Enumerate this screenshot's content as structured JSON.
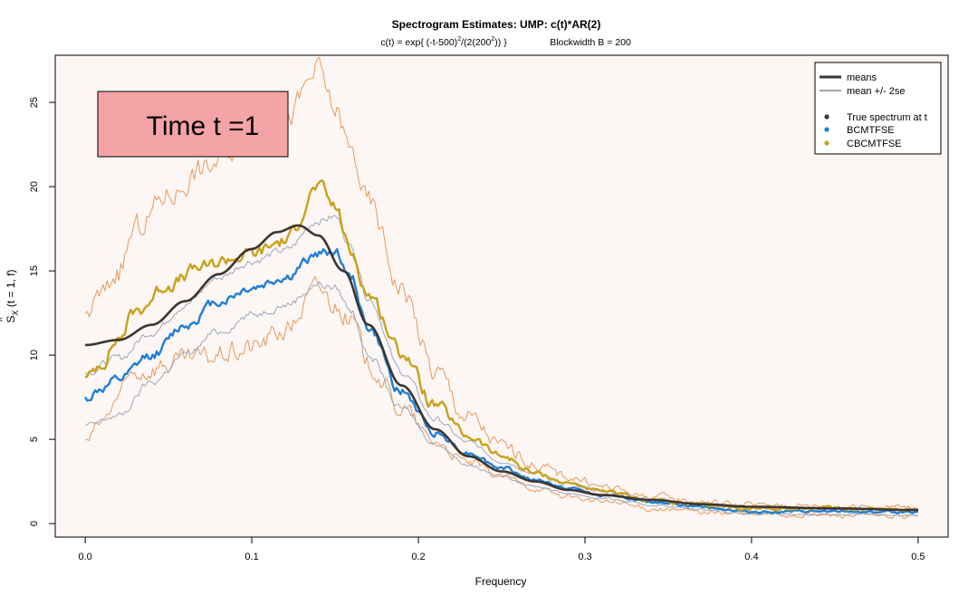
{
  "chart_data": {
    "type": "line",
    "title": "Spectrogram Estimates: UMP: c(t)*AR(2)",
    "subtitle": {
      "formula_base": "c(t) = exp{ (-t-500)",
      "formula_exp1": "2",
      "formula_mid": "/(2(200",
      "formula_exp2": "2",
      "formula_end": ")) }",
      "blockwidth": "Blockwidth B = 200"
    },
    "xlabel": "Frequency",
    "ylabel": {
      "s": "S",
      "hat": "^",
      "sub": "X",
      "rest": " (t = 1, f)"
    },
    "xlim": [
      -0.018,
      0.518
    ],
    "ylim": [
      -0.8,
      27.8
    ],
    "x_ticks": [
      "0.0",
      "0.1",
      "0.2",
      "0.3",
      "0.4",
      "0.5"
    ],
    "y_ticks": [
      "0",
      "5",
      "10",
      "15",
      "20",
      "25"
    ],
    "annotation": "Time t =1",
    "legend": {
      "position": "top-right",
      "items": [
        {
          "label": "means",
          "kind": "thick-line",
          "color": "#3d3530"
        },
        {
          "label": "mean +/- 2se",
          "kind": "thin-line",
          "color": "#4a4a4a"
        },
        {
          "label": "True spectrum at t",
          "kind": "point",
          "color": "#3d3530"
        },
        {
          "label": "BCMTFSE",
          "kind": "point",
          "color": "#1f7fd6"
        },
        {
          "label": "CBCMTFSE",
          "kind": "point",
          "color": "#c8a21a"
        }
      ]
    },
    "series": [
      {
        "name": "True spectrum at t",
        "color": "#3d3530",
        "width": 2.6,
        "noise": 0,
        "seed": 0,
        "x": [
          0,
          0.02,
          0.04,
          0.06,
          0.08,
          0.1,
          0.115,
          0.128,
          0.14,
          0.155,
          0.17,
          0.19,
          0.21,
          0.23,
          0.25,
          0.27,
          0.29,
          0.31,
          0.34,
          0.37,
          0.4,
          0.45,
          0.5
        ],
        "y": [
          10.6,
          10.9,
          11.8,
          13.2,
          14.8,
          16.3,
          17.3,
          17.7,
          17.1,
          15.0,
          11.8,
          8.2,
          5.6,
          4.0,
          3.1,
          2.5,
          2.0,
          1.7,
          1.4,
          1.15,
          1.0,
          0.9,
          0.8
        ]
      },
      {
        "name": "BCMTFSE",
        "color": "#1f7fd6",
        "width": 2.4,
        "noise": 0.55,
        "seed": 11,
        "x": [
          0,
          0.01,
          0.02,
          0.04,
          0.06,
          0.08,
          0.1,
          0.12,
          0.14,
          0.15,
          0.16,
          0.17,
          0.19,
          0.21,
          0.23,
          0.25,
          0.27,
          0.29,
          0.31,
          0.34,
          0.37,
          0.4,
          0.45,
          0.5
        ],
        "y": [
          7.4,
          8.0,
          8.5,
          10.0,
          11.8,
          13.2,
          14.0,
          14.6,
          16.0,
          16.2,
          14.5,
          11.6,
          7.8,
          5.4,
          4.2,
          3.3,
          2.6,
          2.1,
          1.7,
          1.3,
          1.0,
          0.7,
          0.7,
          0.7
        ]
      },
      {
        "name": "CBCMTFSE",
        "color": "#c8a21a",
        "width": 2.4,
        "noise": 0.75,
        "seed": 23,
        "x": [
          0,
          0.01,
          0.02,
          0.03,
          0.05,
          0.07,
          0.09,
          0.1,
          0.12,
          0.14,
          0.15,
          0.16,
          0.17,
          0.19,
          0.21,
          0.23,
          0.25,
          0.27,
          0.29,
          0.31,
          0.34,
          0.37,
          0.4,
          0.45,
          0.5
        ],
        "y": [
          8.5,
          9.6,
          11.0,
          12.6,
          14.2,
          15.2,
          15.8,
          16.0,
          16.8,
          20.0,
          18.8,
          16.0,
          13.6,
          10.2,
          7.0,
          5.2,
          4.0,
          3.0,
          2.4,
          1.9,
          1.4,
          1.1,
          0.9,
          0.9,
          0.85
        ]
      },
      {
        "name": "BCMTFSE + 2se",
        "color": "#9aa8bc",
        "width": 1,
        "noise": 0.45,
        "seed": 31,
        "x": [
          0,
          0.02,
          0.04,
          0.06,
          0.08,
          0.1,
          0.12,
          0.14,
          0.15,
          0.16,
          0.17,
          0.19,
          0.21,
          0.23,
          0.25,
          0.27,
          0.29,
          0.31,
          0.34,
          0.37,
          0.4,
          0.45,
          0.5
        ],
        "y": [
          9.0,
          9.8,
          11.4,
          13.0,
          14.6,
          15.6,
          16.2,
          18.0,
          18.2,
          16.4,
          13.4,
          9.0,
          6.2,
          4.8,
          3.7,
          3.0,
          2.4,
          1.9,
          1.5,
          1.2,
          0.9,
          0.9,
          0.9
        ]
      },
      {
        "name": "BCMTFSE - 2se",
        "color": "#9aa8bc",
        "width": 1,
        "noise": 0.45,
        "seed": 37,
        "x": [
          0,
          0.02,
          0.04,
          0.06,
          0.08,
          0.1,
          0.12,
          0.14,
          0.15,
          0.16,
          0.17,
          0.19,
          0.21,
          0.23,
          0.25,
          0.27,
          0.29,
          0.31,
          0.34,
          0.37,
          0.4,
          0.45,
          0.5
        ],
        "y": [
          5.8,
          6.4,
          8.4,
          10.0,
          11.4,
          12.4,
          13.0,
          14.2,
          14.0,
          12.6,
          10.0,
          6.8,
          4.8,
          3.5,
          2.8,
          2.2,
          1.8,
          1.5,
          1.1,
          0.85,
          0.55,
          0.55,
          0.5
        ]
      },
      {
        "name": "CBCMTFSE + 2se",
        "color": "#e79a5c",
        "width": 1,
        "noise": 1.4,
        "seed": 43,
        "x": [
          0,
          0.01,
          0.02,
          0.03,
          0.05,
          0.07,
          0.09,
          0.1,
          0.12,
          0.14,
          0.15,
          0.16,
          0.17,
          0.19,
          0.21,
          0.23,
          0.25,
          0.27,
          0.29,
          0.31,
          0.34,
          0.37,
          0.4,
          0.45,
          0.5
        ],
        "y": [
          12.5,
          13.5,
          15.0,
          17.5,
          19.5,
          21.0,
          22.2,
          22.8,
          24.0,
          26.8,
          24.5,
          22.0,
          19.0,
          14.0,
          9.0,
          6.3,
          4.6,
          3.5,
          2.8,
          2.2,
          1.6,
          1.3,
          1.1,
          1.05,
          1.0
        ]
      },
      {
        "name": "CBCMTFSE - 2se",
        "color": "#e79a5c",
        "width": 1,
        "noise": 1.2,
        "seed": 53,
        "x": [
          0,
          0.01,
          0.02,
          0.03,
          0.05,
          0.07,
          0.09,
          0.1,
          0.12,
          0.14,
          0.15,
          0.16,
          0.17,
          0.19,
          0.21,
          0.23,
          0.25,
          0.27,
          0.29,
          0.31,
          0.34,
          0.37,
          0.4,
          0.45,
          0.5
        ],
        "y": [
          4.8,
          6.0,
          7.5,
          9.0,
          9.5,
          9.8,
          10.2,
          10.5,
          11.5,
          14.0,
          13.0,
          12.0,
          9.5,
          6.8,
          4.8,
          3.6,
          2.8,
          2.1,
          1.6,
          1.3,
          0.9,
          0.7,
          0.55,
          0.5,
          0.4
        ]
      }
    ],
    "colors": {
      "panel_bg": "#fcf6f4",
      "annotation_box": "#f4a4a6"
    }
  }
}
